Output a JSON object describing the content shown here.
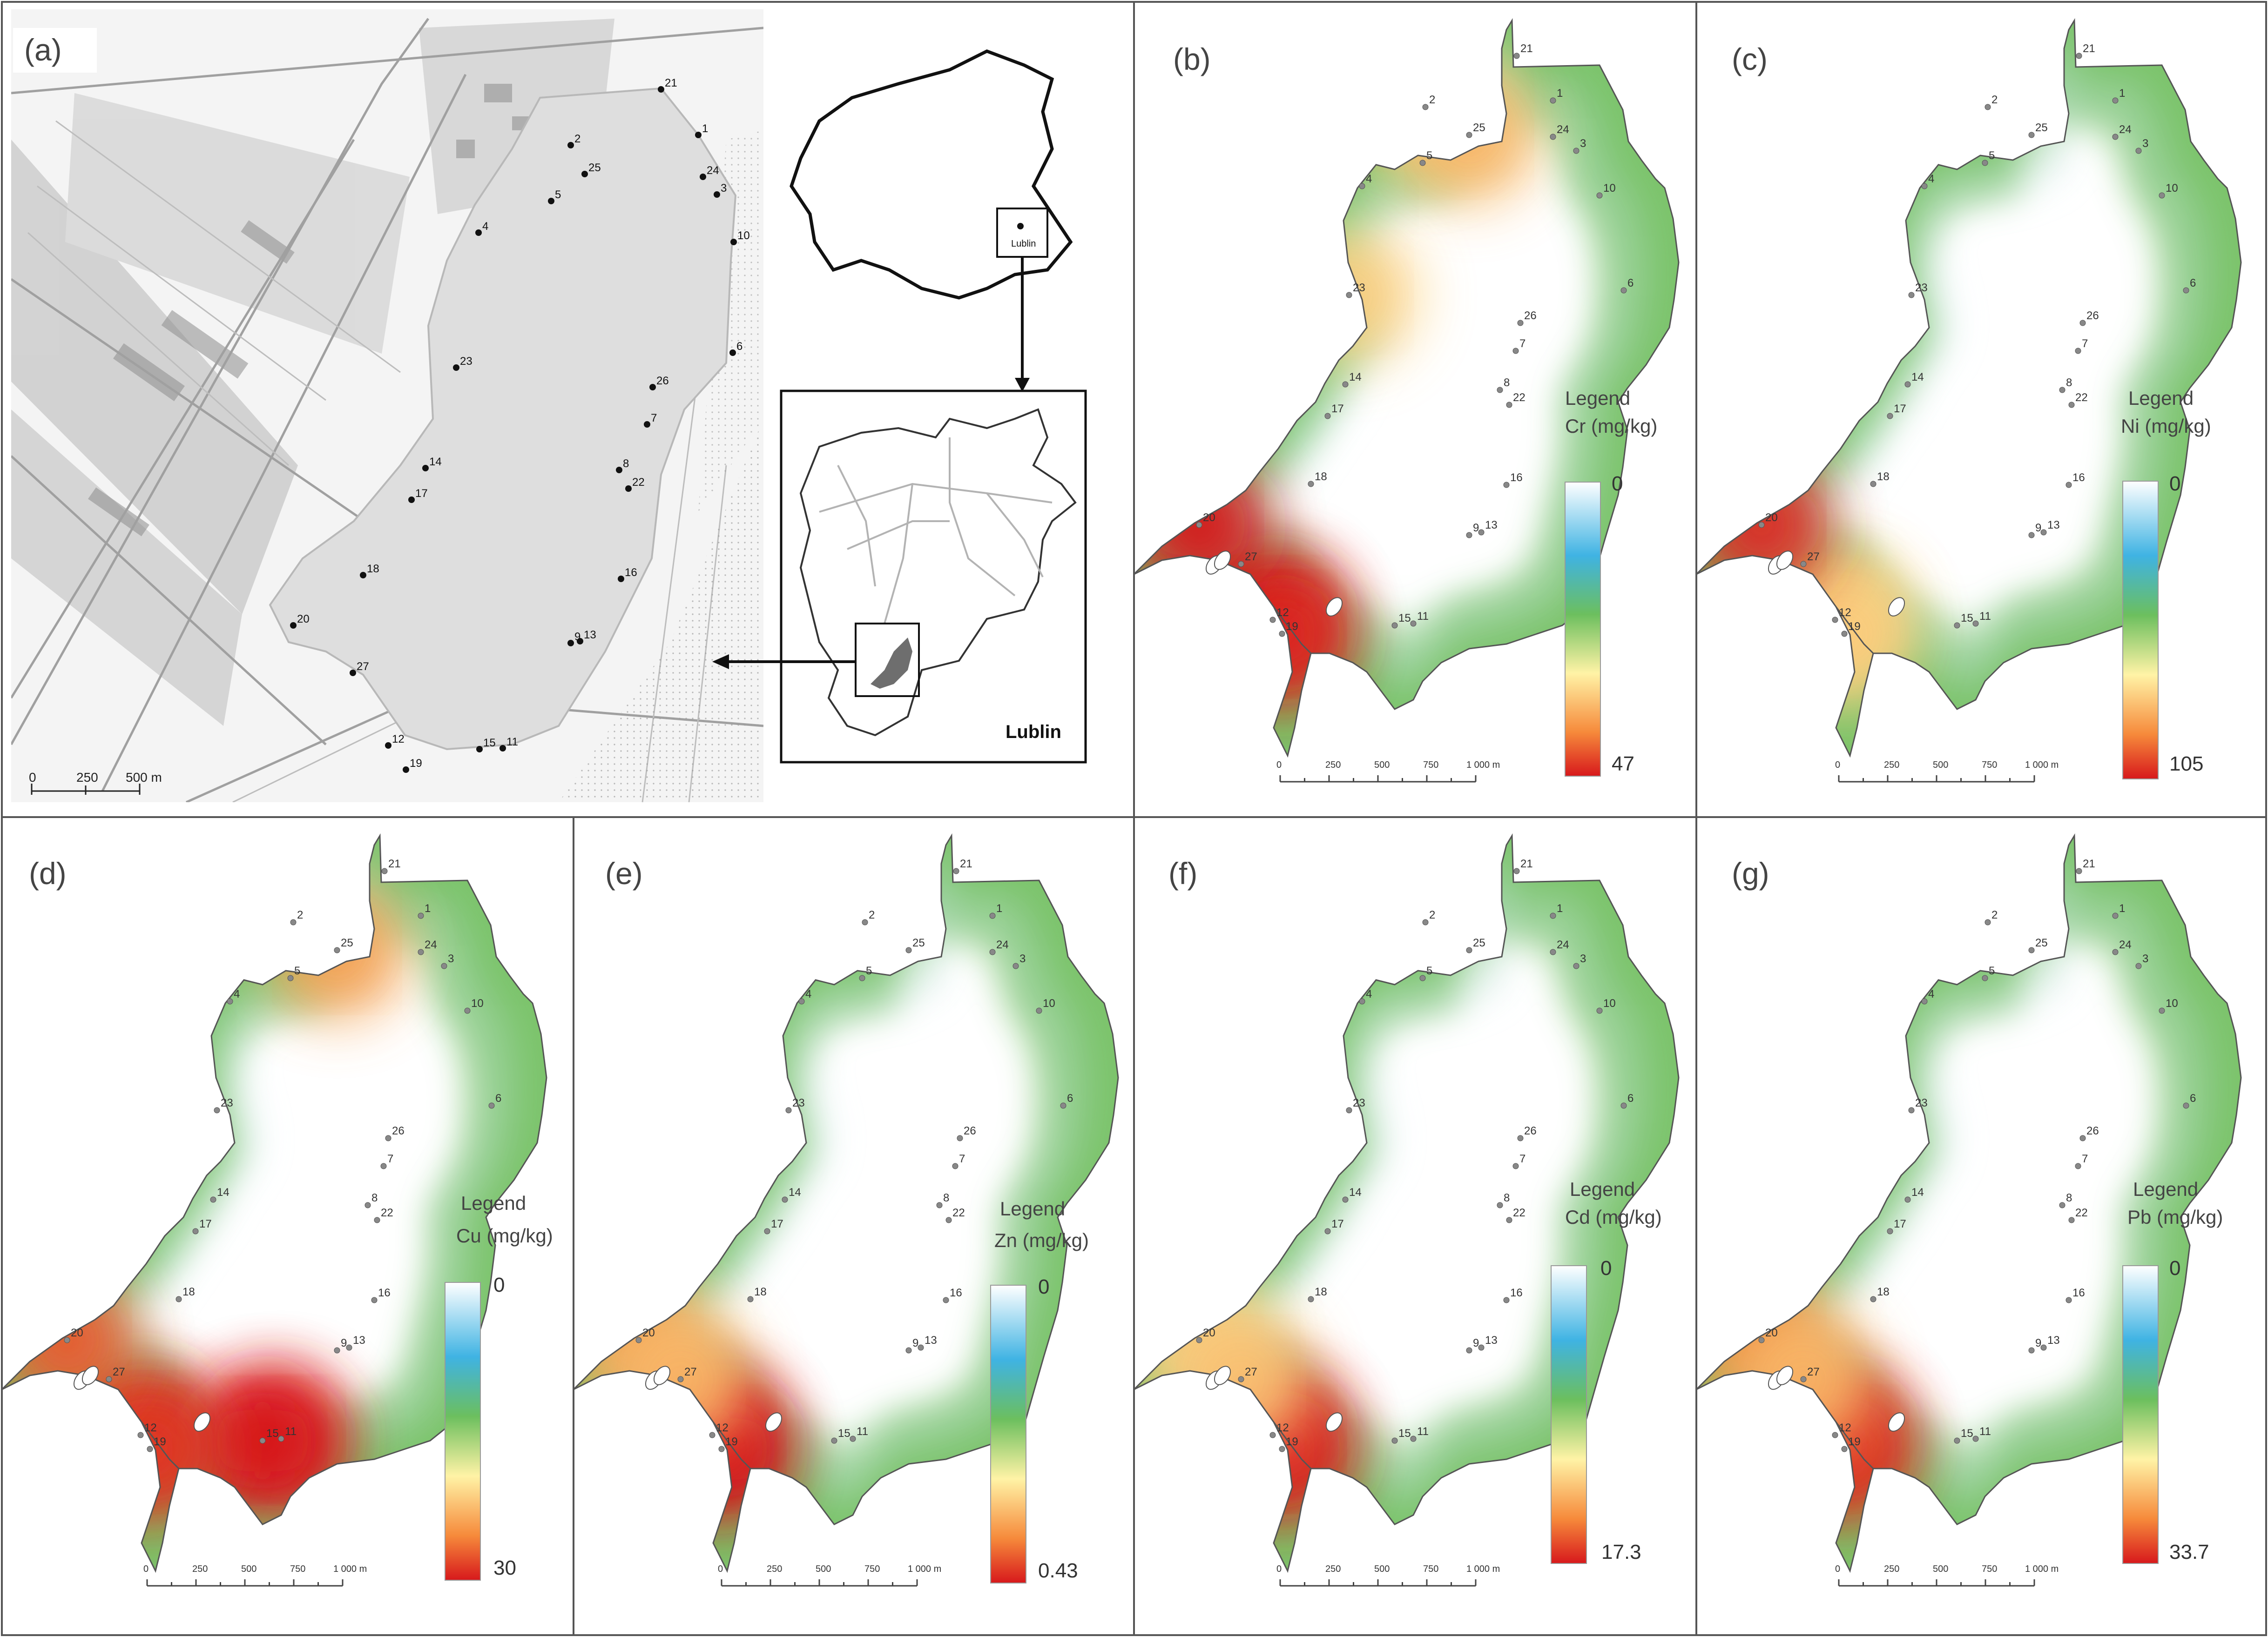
{
  "figure": {
    "panel_a": {
      "label": "(a)",
      "scale_ticks": [
        "0",
        "250",
        "500 m"
      ],
      "city_name": "Lublin",
      "poland_city_label": "Lublin",
      "sites": [
        "21",
        "2",
        "1",
        "25",
        "24",
        "3",
        "5",
        "4",
        "10",
        "23",
        "6",
        "26",
        "7",
        "14",
        "8",
        "22",
        "17",
        "18",
        "16",
        "20",
        "9",
        "13",
        "27",
        "15",
        "11",
        "12",
        "19"
      ]
    },
    "scale_ticks_map": [
      "0",
      "250",
      "500",
      "750",
      "1 000 m"
    ],
    "legend_word": "Legend",
    "legend_min": "0",
    "panels": [
      {
        "label": "(b)",
        "metal": "Cr (mg/kg)",
        "max": "47"
      },
      {
        "label": "(c)",
        "metal": "Ni (mg/kg)",
        "max": "105"
      },
      {
        "label": "(d)",
        "metal": "Cu (mg/kg)",
        "max": "30"
      },
      {
        "label": "(e)",
        "metal": "Zn  (mg/kg)",
        "max": "0.43"
      },
      {
        "label": "(f)",
        "metal": "Cd (mg/kg)",
        "max": "17.3"
      },
      {
        "label": "(g)",
        "metal": "Pb (mg/kg)",
        "max": "33.7"
      }
    ],
    "colors": {
      "scale_low": "#ffffff",
      "scale_2": "#3fb3e3",
      "scale_3": "#6cbf5e",
      "scale_4": "#fff3a6",
      "scale_5": "#f68a3b",
      "scale_high": "#d7191c",
      "lake": "#dedede",
      "basemap": "#f4f4f4"
    },
    "hotspot_intensity": {
      "b": {
        "20": 1.0,
        "12": 1.0,
        "19": 0.95,
        "25": 0.45,
        "2": 0.35,
        "23": 0.35
      },
      "c": {
        "20": 0.95,
        "12": 0.4,
        "19": 0.35
      },
      "d": {
        "20": 0.8,
        "12": 0.95,
        "19": 0.9,
        "15": 1.0,
        "11": 0.95,
        "25": 0.55
      },
      "e": {
        "20": 0.55,
        "12": 1.0,
        "19": 1.0,
        "27": 0.45
      },
      "f": {
        "12": 1.0,
        "19": 0.95,
        "20": 0.35,
        "27": 0.4
      },
      "g": {
        "20": 0.65,
        "12": 1.0,
        "19": 0.9,
        "27": 0.45
      }
    }
  }
}
